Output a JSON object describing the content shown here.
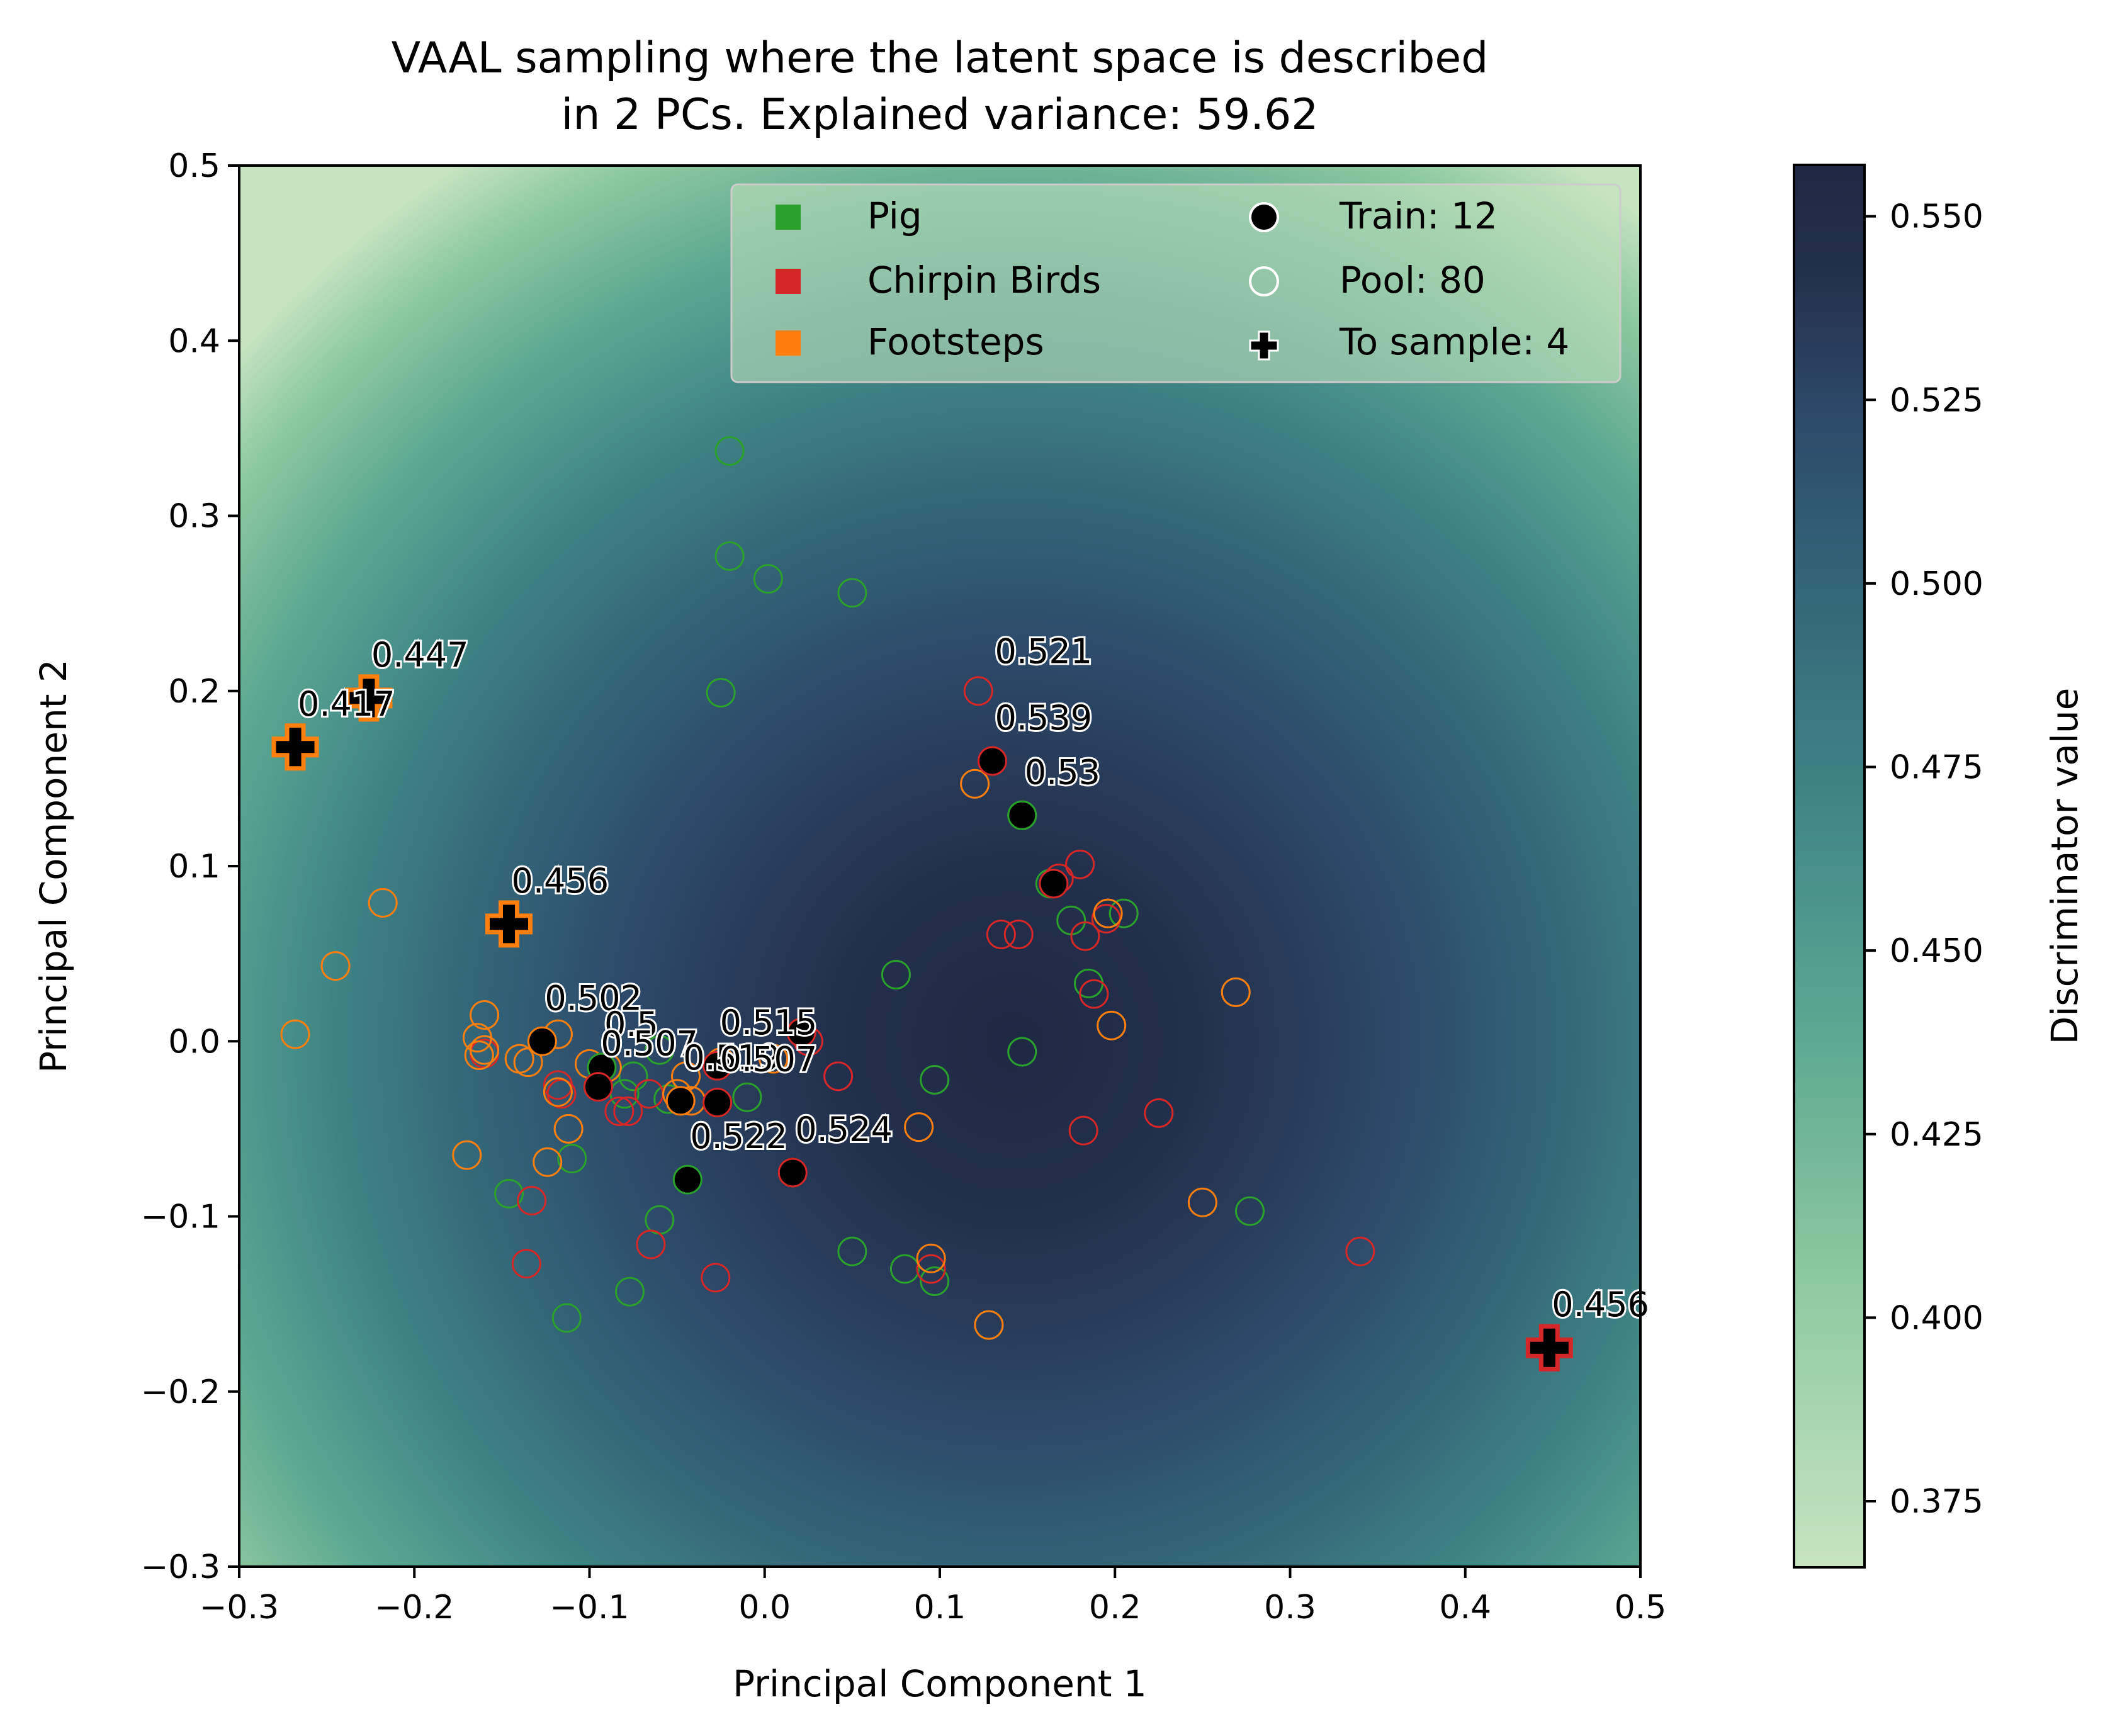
{
  "chart_data": {
    "type": "scatter",
    "title": [
      "VAAL sampling where the latent space is described",
      "in 2 PCs. Explained variance: 59.62"
    ],
    "xlabel": "Principal Component 1",
    "ylabel": "Principal Component 2",
    "xlim": [
      -0.3,
      0.5
    ],
    "ylim": [
      -0.3,
      0.5
    ],
    "xticks": [
      -0.3,
      -0.2,
      -0.1,
      0.0,
      0.1,
      0.2,
      0.3,
      0.4,
      0.5
    ],
    "xtick_labels": [
      "−0.3",
      "−0.2",
      "−0.1",
      "0.0",
      "0.1",
      "0.2",
      "0.3",
      "0.4",
      "0.5"
    ],
    "yticks": [
      -0.3,
      -0.2,
      -0.1,
      0.0,
      0.1,
      0.2,
      0.3,
      0.4,
      0.5
    ],
    "ytick_labels": [
      "−0.3",
      "−0.2",
      "−0.1",
      "0.0",
      "0.1",
      "0.2",
      "0.3",
      "0.4",
      "0.5"
    ],
    "background": {
      "type": "heatmap",
      "description_center": [
        0.08,
        0.0
      ],
      "min_value": 0.366,
      "max_value": 0.557
    },
    "colorbar": {
      "label": "Discriminator value",
      "range": [
        0.366,
        0.557
      ],
      "ticks": [
        0.375,
        0.4,
        0.425,
        0.45,
        0.475,
        0.5,
        0.525,
        0.55
      ],
      "tick_labels": [
        "0.375",
        "0.400",
        "0.425",
        "0.450",
        "0.475",
        "0.500",
        "0.525",
        "0.550"
      ],
      "colors": [
        "#c6e4c0",
        "#8fcaa0",
        "#5ca892",
        "#3f8585",
        "#336578",
        "#2d4a6a",
        "#23304d",
        "#1e2944"
      ]
    },
    "classes": [
      {
        "name": "Pig",
        "color": "#2ca02c"
      },
      {
        "name": "Chirpin Birds",
        "color": "#d62728"
      },
      {
        "name": "Footsteps",
        "color": "#ff7f0e"
      }
    ],
    "legend": {
      "placement": "top-right",
      "entries": [
        "Pig",
        "Chirpin Birds",
        "Footsteps",
        "Train: 12",
        "Pool: 80",
        "To sample: 4"
      ]
    },
    "pool": {
      "Pig": [
        [
          -0.02,
          0.337
        ],
        [
          -0.02,
          0.277
        ],
        [
          0.002,
          0.264
        ],
        [
          0.05,
          0.256
        ],
        [
          -0.025,
          0.199
        ],
        [
          0.147,
          0.129
        ],
        [
          0.163,
          0.09
        ],
        [
          0.175,
          0.069
        ],
        [
          0.205,
          0.073
        ],
        [
          0.185,
          0.033
        ],
        [
          0.075,
          0.038
        ],
        [
          0.147,
          -0.006
        ],
        [
          0.097,
          -0.022
        ],
        [
          -0.075,
          -0.02
        ],
        [
          -0.08,
          -0.03
        ],
        [
          -0.06,
          -0.005
        ],
        [
          -0.055,
          -0.033
        ],
        [
          -0.01,
          -0.032
        ],
        [
          -0.11,
          -0.067
        ],
        [
          -0.146,
          -0.087
        ],
        [
          -0.06,
          -0.102
        ],
        [
          -0.077,
          -0.143
        ],
        [
          -0.113,
          -0.158
        ],
        [
          0.05,
          -0.12
        ],
        [
          0.08,
          -0.13
        ],
        [
          0.097,
          -0.137
        ],
        [
          0.277,
          -0.097
        ]
      ],
      "Chirpin Birds": [
        [
          0.122,
          0.2
        ],
        [
          0.135,
          0.061
        ],
        [
          0.145,
          0.061
        ],
        [
          0.18,
          0.101
        ],
        [
          0.168,
          0.093
        ],
        [
          0.183,
          0.06
        ],
        [
          0.195,
          0.07
        ],
        [
          0.188,
          0.027
        ],
        [
          0.042,
          -0.02
        ],
        [
          -0.083,
          -0.04
        ],
        [
          -0.078,
          -0.04
        ],
        [
          -0.066,
          -0.03
        ],
        [
          -0.116,
          -0.03
        ],
        [
          -0.118,
          -0.025
        ],
        [
          -0.133,
          -0.091
        ],
        [
          -0.136,
          -0.127
        ],
        [
          -0.065,
          -0.116
        ],
        [
          -0.028,
          -0.135
        ],
        [
          0.095,
          -0.13
        ],
        [
          0.182,
          -0.051
        ],
        [
          0.225,
          -0.041
        ],
        [
          0.34,
          -0.12
        ],
        [
          -0.16,
          -0.007
        ],
        [
          0.025,
          0.0
        ]
      ],
      "Footsteps": [
        [
          -0.218,
          0.079
        ],
        [
          -0.245,
          0.043
        ],
        [
          -0.268,
          0.004
        ],
        [
          -0.16,
          0.015
        ],
        [
          -0.164,
          0.002
        ],
        [
          -0.16,
          -0.005
        ],
        [
          -0.163,
          -0.008
        ],
        [
          -0.14,
          -0.01
        ],
        [
          -0.135,
          -0.012
        ],
        [
          -0.118,
          0.004
        ],
        [
          -0.118,
          -0.029
        ],
        [
          -0.112,
          -0.05
        ],
        [
          -0.124,
          -0.069
        ],
        [
          -0.17,
          -0.065
        ],
        [
          -0.045,
          -0.02
        ],
        [
          -0.05,
          -0.03
        ],
        [
          -0.09,
          -0.015
        ],
        [
          0.12,
          0.147
        ],
        [
          0.196,
          0.073
        ],
        [
          0.198,
          0.009
        ],
        [
          0.269,
          0.028
        ],
        [
          0.088,
          -0.049
        ],
        [
          0.095,
          -0.124
        ],
        [
          0.128,
          -0.162
        ],
        [
          0.25,
          -0.092
        ],
        [
          -0.042,
          -0.034
        ],
        [
          -0.1,
          -0.013
        ],
        [
          -0.025,
          -0.012
        ],
        [
          0.005,
          -0.01
        ]
      ]
    },
    "train": [
      {
        "x": 0.13,
        "y": 0.16,
        "class": "Chirpin Birds",
        "label": "0.539"
      },
      {
        "x": 0.147,
        "y": 0.129,
        "class": "Pig",
        "label": "0.53"
      },
      {
        "x": 0.165,
        "y": 0.09,
        "class": "Chirpin Birds",
        "label": ""
      },
      {
        "x": -0.127,
        "y": 0.0,
        "class": "Footsteps",
        "label": "0.502"
      },
      {
        "x": -0.093,
        "y": -0.015,
        "class": "Pig",
        "label": "0.5"
      },
      {
        "x": -0.095,
        "y": -0.026,
        "class": "Chirpin Birds",
        "label": "0.507"
      },
      {
        "x": -0.048,
        "y": -0.034,
        "class": "Footsteps",
        "label": "0.519"
      },
      {
        "x": -0.027,
        "y": -0.014,
        "class": "Chirpin Birds",
        "label": "0.515"
      },
      {
        "x": -0.027,
        "y": -0.035,
        "class": "Chirpin Birds",
        "label": "0.507"
      },
      {
        "x": -0.044,
        "y": -0.079,
        "class": "Pig",
        "label": "0.522"
      },
      {
        "x": 0.016,
        "y": -0.075,
        "class": "Chirpin Birds",
        "label": "0.524"
      },
      {
        "x": 0.021,
        "y": 0.005,
        "class": "Chirpin Birds",
        "label": ""
      }
    ],
    "to_sample": [
      {
        "x": -0.268,
        "y": 0.168,
        "class": "Footsteps",
        "label": "0.417"
      },
      {
        "x": -0.226,
        "y": 0.196,
        "class": "Footsteps",
        "label": "0.447"
      },
      {
        "x": -0.146,
        "y": 0.067,
        "class": "Footsteps",
        "label": "0.456"
      },
      {
        "x": 0.448,
        "y": -0.175,
        "class": "Chirpin Birds",
        "label": "0.456"
      }
    ],
    "extra_labels": [
      {
        "x": 0.13,
        "y": 0.198,
        "text": "0.521"
      }
    ]
  }
}
